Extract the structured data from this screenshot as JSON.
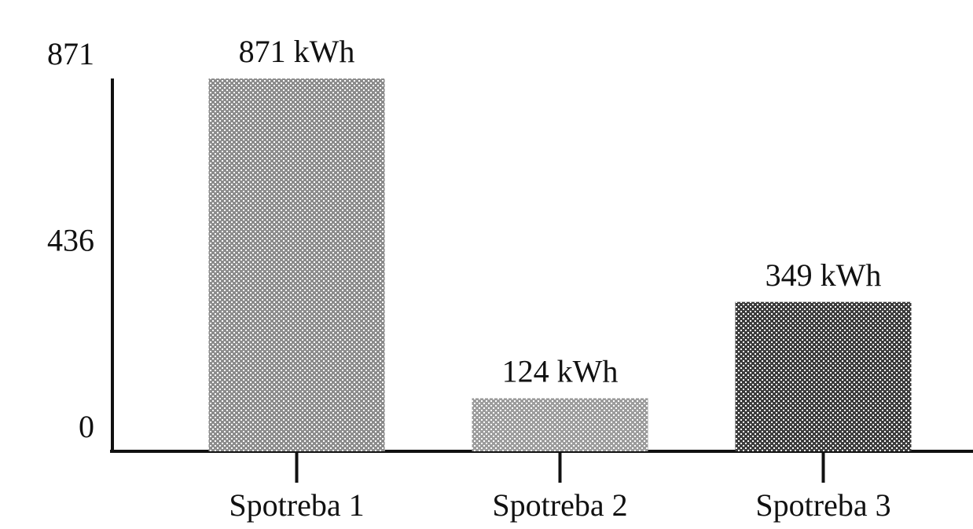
{
  "chart_data": {
    "type": "bar",
    "categories": [
      "Spotreba 1",
      "Spotreba 2",
      "Spotreba 3"
    ],
    "values": [
      871,
      124,
      349
    ],
    "value_labels": [
      "871 kWh",
      "124 kWh",
      "349 kWh"
    ],
    "colors": [
      "#8c8c8c",
      "#9c9c9c",
      "#3c3c3c"
    ],
    "ylim": [
      0,
      871
    ],
    "yticks": [
      0,
      436,
      871
    ],
    "grid": false
  }
}
